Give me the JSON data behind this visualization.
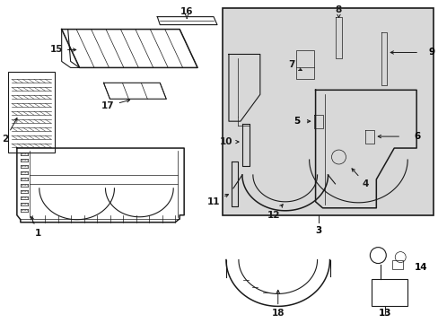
{
  "bg_color": "#ffffff",
  "box_bg": "#d8d8d8",
  "line_color": "#1a1a1a",
  "figsize": [
    4.89,
    3.6
  ],
  "dpi": 100
}
